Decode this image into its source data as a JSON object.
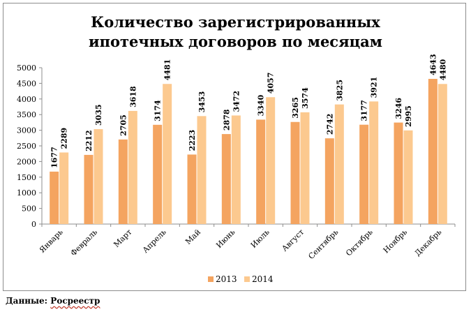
{
  "chart_data": {
    "type": "bar",
    "title_lines": [
      "Количество зарегистрированных",
      "ипотечных договоров по месяцам"
    ],
    "categories": [
      "Январь",
      "Февраль",
      "Март",
      "Апрель",
      "Май",
      "Июнь",
      "Июль",
      "Август",
      "Сентябрь",
      "Октябрь",
      "Ноябрь",
      "Декабрь"
    ],
    "series": [
      {
        "name": "2013",
        "color": "#f4a460",
        "values": [
          1677,
          2212,
          2705,
          3174,
          2223,
          2878,
          3340,
          3265,
          2742,
          3177,
          3246,
          4643
        ]
      },
      {
        "name": "2014",
        "color": "#fcc98f",
        "values": [
          2289,
          3035,
          3618,
          4481,
          3453,
          3472,
          4057,
          3574,
          3825,
          3921,
          2995,
          4480
        ]
      }
    ],
    "ylim": [
      0,
      5000
    ],
    "yticks": [
      0,
      500,
      1000,
      1500,
      2000,
      2500,
      3000,
      3500,
      4000,
      4500,
      5000
    ],
    "grid": false,
    "legend_position": "bottom"
  },
  "source_label": "Данные: ",
  "source_name": "Росреестр"
}
